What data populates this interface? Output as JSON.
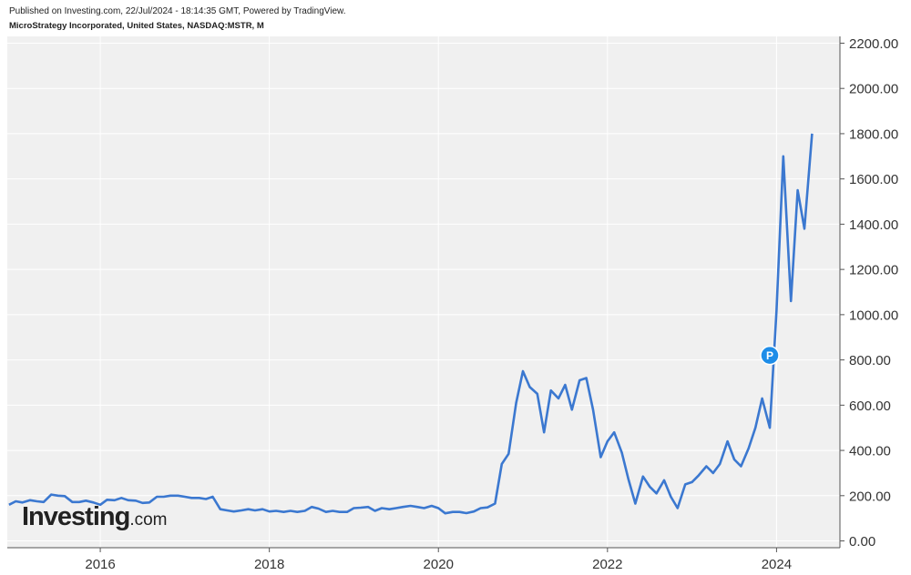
{
  "header": {
    "publisher": "Published on Investing.com, 22/Jul/2024 - 18:14:35 GMT, Powered by TradingView.",
    "symbol": "MicroStrategy Incorporated, United States, NASDAQ:MSTR, M"
  },
  "logo": {
    "main": "Investing",
    "domain": ".com"
  },
  "chart_data": {
    "type": "line",
    "title": "",
    "xlabel": "",
    "ylabel": "",
    "xlim": [
      2014.9,
      2024.75
    ],
    "ylim": [
      -30,
      2230
    ],
    "y_ticks": [
      0,
      200,
      400,
      600,
      800,
      1000,
      1200,
      1400,
      1600,
      1800,
      2000,
      2200
    ],
    "y_tick_labels": [
      "0.00",
      "200.00",
      "400.00",
      "600.00",
      "800.00",
      "1000.00",
      "1200.00",
      "1400.00",
      "1600.00",
      "1800.00",
      "2000.00",
      "2200.00"
    ],
    "x_ticks": [
      2016,
      2018,
      2020,
      2022,
      2024
    ],
    "x_tick_labels": [
      "2016",
      "2018",
      "2020",
      "2022",
      "2024"
    ],
    "grid": true,
    "line_color": "#3b78d0",
    "marker": {
      "label": "P",
      "x": 2023.92,
      "y": 820,
      "color": "#1e8de8"
    },
    "series": [
      {
        "x": [
          2014.92,
          2015.0,
          2015.08,
          2015.17,
          2015.25,
          2015.33,
          2015.42,
          2015.5,
          2015.58,
          2015.67,
          2015.75,
          2015.83,
          2015.92,
          2016.0,
          2016.08,
          2016.17,
          2016.25,
          2016.33,
          2016.42,
          2016.5,
          2016.58,
          2016.67,
          2016.75,
          2016.83,
          2016.92,
          2017.0,
          2017.08,
          2017.17,
          2017.25,
          2017.33,
          2017.42,
          2017.5,
          2017.58,
          2017.67,
          2017.75,
          2017.83,
          2017.92,
          2018.0,
          2018.08,
          2018.17,
          2018.25,
          2018.33,
          2018.42,
          2018.5,
          2018.58,
          2018.67,
          2018.75,
          2018.83,
          2018.92,
          2019.0,
          2019.08,
          2019.17,
          2019.25,
          2019.33,
          2019.42,
          2019.5,
          2019.58,
          2019.67,
          2019.75,
          2019.83,
          2019.92,
          2020.0,
          2020.08,
          2020.17,
          2020.25,
          2020.33,
          2020.42,
          2020.5,
          2020.58,
          2020.67,
          2020.75,
          2020.83,
          2020.92,
          2021.0,
          2021.08,
          2021.17,
          2021.25,
          2021.33,
          2021.42,
          2021.5,
          2021.58,
          2021.67,
          2021.75,
          2021.83,
          2021.92,
          2022.0,
          2022.08,
          2022.17,
          2022.25,
          2022.33,
          2022.42,
          2022.5,
          2022.58,
          2022.67,
          2022.75,
          2022.83,
          2022.92,
          2023.0,
          2023.08,
          2023.17,
          2023.25,
          2023.33,
          2023.42,
          2023.5,
          2023.58,
          2023.67,
          2023.75,
          2023.83,
          2023.92,
          2024.0,
          2024.08,
          2024.17,
          2024.25,
          2024.33,
          2024.42
        ],
        "y": [
          160,
          175,
          170,
          180,
          175,
          172,
          205,
          200,
          198,
          172,
          172,
          178,
          170,
          160,
          182,
          180,
          190,
          180,
          178,
          168,
          170,
          195,
          195,
          200,
          200,
          195,
          190,
          190,
          185,
          195,
          140,
          135,
          130,
          135,
          140,
          135,
          140,
          130,
          133,
          128,
          133,
          128,
          133,
          150,
          143,
          128,
          133,
          128,
          128,
          145,
          147,
          150,
          133,
          145,
          140,
          145,
          150,
          155,
          150,
          145,
          155,
          145,
          122,
          128,
          128,
          123,
          130,
          145,
          148,
          165,
          340,
          385,
          610,
          750,
          680,
          650,
          480,
          665,
          630,
          690,
          580,
          710,
          720,
          580,
          370,
          440,
          480,
          390,
          270,
          165,
          285,
          240,
          210,
          268,
          195,
          145,
          250,
          260,
          290,
          330,
          300,
          340,
          440,
          360,
          330,
          410,
          500,
          630,
          500,
          1020,
          1700,
          1060,
          1550,
          1380,
          1800
        ]
      }
    ]
  }
}
